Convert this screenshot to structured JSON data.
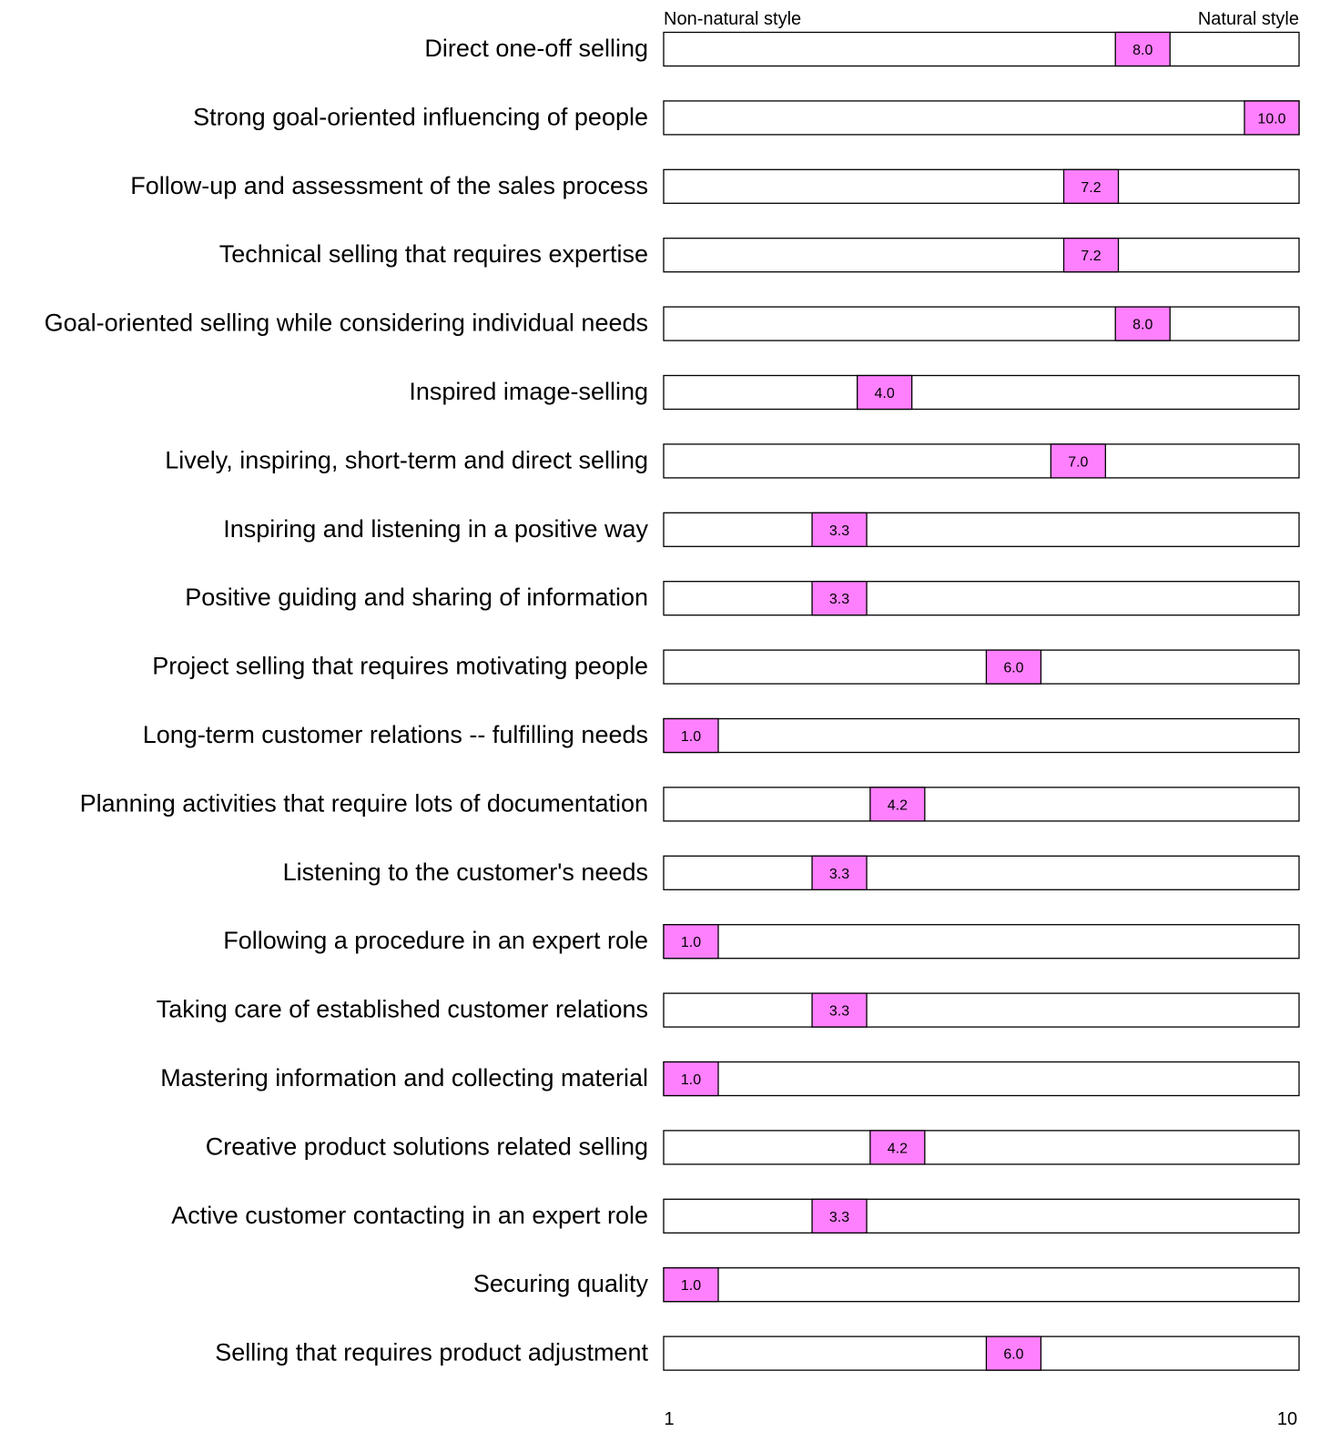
{
  "chart_data": {
    "type": "bar",
    "axis_left_label": "Non-natural style",
    "axis_right_label": "Natural style",
    "xlim": [
      1,
      10
    ],
    "x_ticks": [
      "1",
      "10"
    ],
    "marker_color": "#ff80ff",
    "rows": [
      {
        "label": "Direct one-off selling",
        "value": 8.0,
        "value_label": "8.0"
      },
      {
        "label": "Strong goal-oriented influencing of people",
        "value": 10.0,
        "value_label": "10.0"
      },
      {
        "label": "Follow-up and assessment of the sales process",
        "value": 7.2,
        "value_label": "7.2"
      },
      {
        "label": "Technical selling that requires expertise",
        "value": 7.2,
        "value_label": "7.2"
      },
      {
        "label": "Goal-oriented selling while considering individual needs",
        "value": 8.0,
        "value_label": "8.0"
      },
      {
        "label": "Inspired image-selling",
        "value": 4.0,
        "value_label": "4.0"
      },
      {
        "label": "Lively, inspiring, short-term and direct selling",
        "value": 7.0,
        "value_label": "7.0"
      },
      {
        "label": "Inspiring and listening in a positive way",
        "value": 3.3,
        "value_label": "3.3"
      },
      {
        "label": "Positive guiding and sharing of information",
        "value": 3.3,
        "value_label": "3.3"
      },
      {
        "label": "Project selling that requires motivating people",
        "value": 6.0,
        "value_label": "6.0"
      },
      {
        "label": "Long-term customer relations -- fulfilling needs",
        "value": 1.0,
        "value_label": "1.0"
      },
      {
        "label": "Planning activities that require lots of documentation",
        "value": 4.2,
        "value_label": "4.2"
      },
      {
        "label": "Listening to the customer's needs",
        "value": 3.3,
        "value_label": "3.3"
      },
      {
        "label": "Following a procedure in an expert role",
        "value": 1.0,
        "value_label": "1.0"
      },
      {
        "label": "Taking care of established customer relations",
        "value": 3.3,
        "value_label": "3.3"
      },
      {
        "label": "Mastering information and collecting material",
        "value": 1.0,
        "value_label": "1.0"
      },
      {
        "label": "Creative product solutions related selling",
        "value": 4.2,
        "value_label": "4.2"
      },
      {
        "label": "Active customer contacting in an expert role",
        "value": 3.3,
        "value_label": "3.3"
      },
      {
        "label": "Securing quality",
        "value": 1.0,
        "value_label": "1.0"
      },
      {
        "label": "Selling that requires product adjustment",
        "value": 6.0,
        "value_label": "6.0"
      }
    ]
  }
}
